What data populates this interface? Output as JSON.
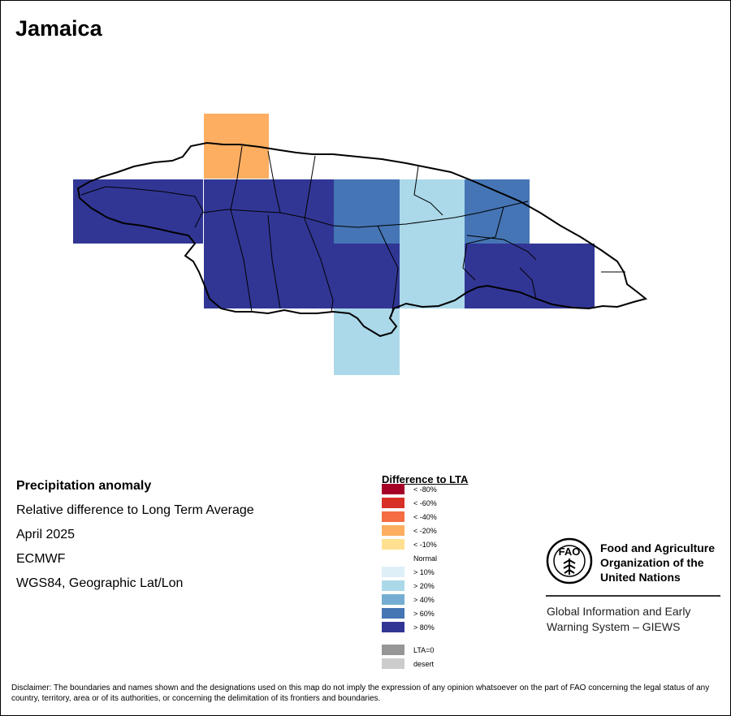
{
  "title": "Jamaica",
  "info": {
    "heading": "Precipitation anomaly",
    "subtitle": "Relative difference to Long Term Average",
    "period": "April 2025",
    "source": "ECMWF",
    "projection": "WGS84, Geographic Lat/Lon"
  },
  "legend": {
    "title": "Difference to LTA",
    "items": [
      {
        "label": "< -80%",
        "color": "#a50026"
      },
      {
        "label": "< -60%",
        "color": "#d73027"
      },
      {
        "label": "< -40%",
        "color": "#f46d43"
      },
      {
        "label": "< -20%",
        "color": "#fdae61"
      },
      {
        "label": "< -10%",
        "color": "#fee090"
      },
      {
        "label": "Normal",
        "color": "#ffffff"
      },
      {
        "label": "> 10%",
        "color": "#deeff7"
      },
      {
        "label": "> 20%",
        "color": "#abd9e9"
      },
      {
        "label": "> 40%",
        "color": "#74add1"
      },
      {
        "label": "> 60%",
        "color": "#4575b4"
      },
      {
        "label": "> 80%",
        "color": "#313695"
      },
      {
        "label": "LTA=0",
        "color": "#969696"
      },
      {
        "label": "desert",
        "color": "#cccccc"
      }
    ]
  },
  "org": {
    "logo_text": "FAO",
    "name": "Food and Agriculture Organization of the United Nations",
    "system": "Global Information and Early Warning System – GIEWS"
  },
  "disclaimer": "Disclaimer: The boundaries and names shown and the designations used on this map do not imply the expression of any opinion whatsoever on the part of FAO concerning the legal status of any country, territory, area or of its authorities, or concerning the delimitation of its frontiers and boundaries.",
  "map": {
    "cells": [
      {
        "category": "< -20%"
      },
      {
        "category": "> 80%"
      },
      {
        "category": "> 80%"
      },
      {
        "category": "> 60%"
      },
      {
        "category": "> 20%"
      },
      {
        "category": "> 60%"
      },
      {
        "category": "> 80%"
      },
      {
        "category": "> 20%"
      },
      {
        "category": "> 80%"
      },
      {
        "category": "> 20%"
      }
    ]
  }
}
